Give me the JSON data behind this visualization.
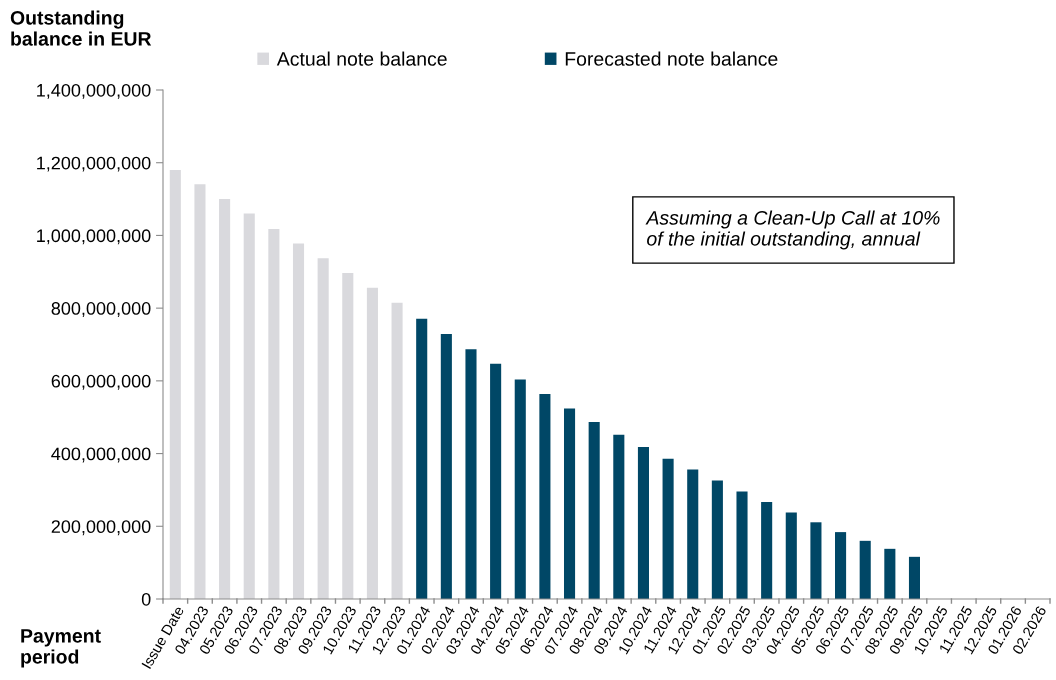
{
  "chart_data": {
    "type": "bar",
    "ylabel": "Outstanding balance in EUR",
    "xlabel": "Payment period",
    "categories": [
      "Issue Date",
      "04.2023",
      "05.2023",
      "06.2023",
      "07.2023",
      "08.2023",
      "09.2023",
      "10.2023",
      "11.2023",
      "12.2023",
      "01.2024",
      "02.2024",
      "03.2024",
      "04.2024",
      "05.2024",
      "06.2024",
      "07.2024",
      "08.2024",
      "09.2024",
      "10.2024",
      "11.2024",
      "12.2024",
      "01.2025",
      "02.2025",
      "03.2025",
      "04.2025",
      "05.2025",
      "06.2025",
      "07.2025",
      "08.2025",
      "09.2025",
      "10.2025",
      "11.2025",
      "12.2025",
      "01.2026",
      "02.2026"
    ],
    "stacked": true,
    "series": [
      {
        "name": "Actual note balance",
        "color": "#d9d9dd",
        "values": [
          1180000000,
          1141000000,
          1100000000,
          1060000000,
          1018000000,
          978000000,
          937000000,
          897000000,
          856000000,
          815000000,
          null,
          null,
          null,
          null,
          null,
          null,
          null,
          null,
          null,
          null,
          null,
          null,
          null,
          null,
          null,
          null,
          null,
          null,
          null,
          null,
          null,
          null,
          null,
          null,
          null,
          null
        ]
      },
      {
        "name": "Forecasted note balance",
        "color": "#004766",
        "values": [
          null,
          null,
          null,
          null,
          null,
          null,
          null,
          null,
          null,
          null,
          771000000,
          729000000,
          687000000,
          647000000,
          604000000,
          564000000,
          524000000,
          487000000,
          452000000,
          418000000,
          386000000,
          356000000,
          326000000,
          296000000,
          267000000,
          238000000,
          211000000,
          184000000,
          160000000,
          138000000,
          116000000,
          null,
          null,
          null,
          null,
          null
        ]
      }
    ],
    "ylim": [
      0,
      1400000000
    ],
    "yticks": [
      {
        "value": 0,
        "label": "0"
      },
      {
        "value": 200000000,
        "label": "200,000,000"
      },
      {
        "value": 400000000,
        "label": "400,000,000"
      },
      {
        "value": 600000000,
        "label": "600,000,000"
      },
      {
        "value": 800000000,
        "label": "800,000,000"
      },
      {
        "value": 1000000000,
        "label": "1,000,000,000"
      },
      {
        "value": 1200000000,
        "label": "1,200,000,000"
      },
      {
        "value": 1400000000,
        "label": "1,400,000,000"
      }
    ],
    "grid": false,
    "legend": "top",
    "annotations": [
      "Assuming a Clean-Up Call at 10%\nof the initial outstanding, annual"
    ]
  }
}
